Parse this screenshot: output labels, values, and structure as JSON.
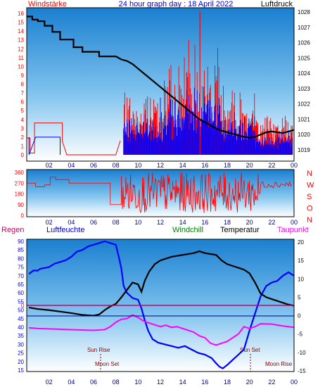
{
  "header": {
    "left_label": "Windstärke",
    "center_title": "24 hour graph day : 18 April 2022",
    "right_label": "Luftdruck"
  },
  "panel1": {
    "left_axis_ticks": [
      "16",
      "15",
      "14",
      "13",
      "12",
      "11",
      "10",
      "9",
      "8",
      "7",
      "6",
      "5",
      "4",
      "3",
      "2",
      "1",
      "0"
    ],
    "right_axis_ticks": [
      "1028",
      "1027",
      "1026",
      "1025",
      "1024",
      "1023",
      "1022",
      "1021",
      "1020",
      "1019"
    ],
    "x_ticks": [
      "02",
      "04",
      "06",
      "08",
      "10",
      "12",
      "14",
      "16",
      "18",
      "20",
      "22",
      "00"
    ]
  },
  "panel2": {
    "left_axis_ticks": [
      "360",
      "270",
      "180",
      "90",
      "0"
    ],
    "right_letters": [
      "N",
      "W",
      "S",
      "O",
      "N"
    ],
    "x_ticks": [
      "02",
      "04",
      "06",
      "08",
      "10",
      "12",
      "14",
      "16",
      "18",
      "20",
      "22",
      "00"
    ]
  },
  "panel3": {
    "labels": {
      "regen": "Regen",
      "luftfeuchte": "Luftfeuchte",
      "windchill": "Windchill",
      "temperatur": "Temperatur",
      "taupunkt": "Taupunkt"
    },
    "left_axis_ticks": [
      "90",
      "85",
      "80",
      "75",
      "70",
      "65",
      "60",
      "55",
      "50",
      "45",
      "40",
      "35",
      "30",
      "25",
      "20",
      "15"
    ],
    "right_axis_ticks": [
      "20",
      "15",
      "10",
      "5",
      "0",
      "-5",
      "-10",
      "-15"
    ],
    "regen_zero": "0",
    "x_ticks": [
      "02",
      "04",
      "06",
      "08",
      "10",
      "12",
      "14",
      "16",
      "18",
      "20",
      "22",
      "00"
    ],
    "sun_rise": "Sun Rise",
    "sun_set": "Sun Set",
    "moon_set": "Moon Set",
    "moon_rise": "Moon Rise"
  },
  "colors": {
    "wind": "#ff0000",
    "gust_blue": "#0000ff",
    "pressure": "#000000",
    "humidity": "#0000ff",
    "temperature": "#000000",
    "dewpoint": "#ff00ff",
    "rain": "#cc0066",
    "axis_left": "#ff0000",
    "axis_right": "#000000"
  }
}
